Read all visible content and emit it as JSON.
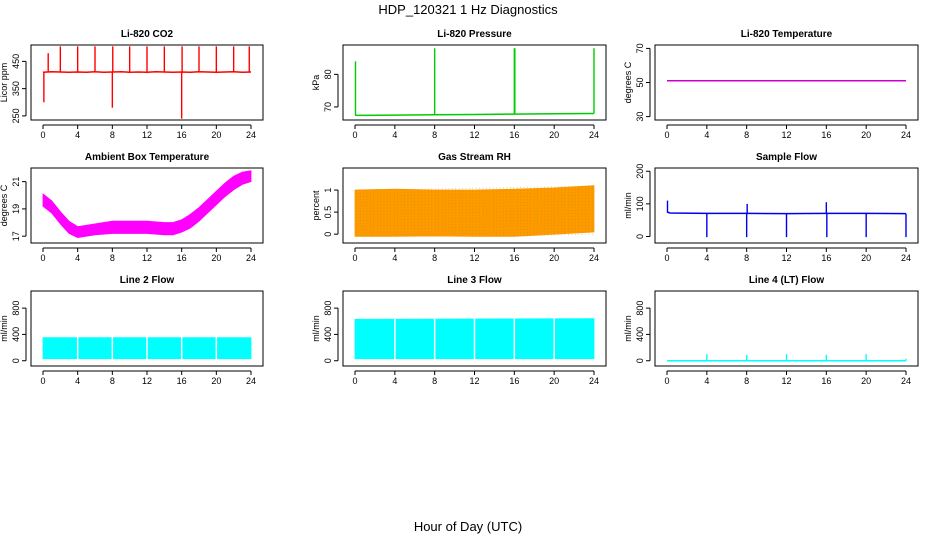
{
  "figure": {
    "title": "HDP_120321  1 Hz Diagnostics",
    "xlabel": "Hour of Day (UTC)"
  },
  "chart_data": [
    {
      "id": "co2",
      "type": "line",
      "title": "Li-820 CO2",
      "ylabel": "Licor ppm",
      "color": "#ff0000",
      "xlim": [
        0,
        24
      ],
      "xticks": [
        0,
        4,
        8,
        12,
        16,
        20,
        24
      ],
      "ylim": [
        235,
        510
      ],
      "yticks": [
        250,
        350,
        450
      ],
      "series": [
        {
          "name": "CO2",
          "x": [
            0,
            1,
            2,
            3,
            4,
            5,
            6,
            7,
            8,
            9,
            10,
            11,
            12,
            13,
            14,
            15,
            16,
            17,
            18,
            19,
            20,
            21,
            22,
            23,
            24
          ],
          "y": [
            410,
            412,
            411,
            410,
            411,
            410,
            412,
            410,
            411,
            412,
            410,
            411,
            410,
            412,
            411,
            410,
            411,
            410,
            412,
            411,
            410,
            411,
            412,
            410,
            411
          ]
        }
      ],
      "spikes": [
        {
          "x": 0.1,
          "y": 300
        },
        {
          "x": 0.6,
          "y": 480
        },
        {
          "x": 2.0,
          "y": 505
        },
        {
          "x": 4.0,
          "y": 505
        },
        {
          "x": 6.0,
          "y": 505
        },
        {
          "x": 8.0,
          "y": 280
        },
        {
          "x": 8.05,
          "y": 505
        },
        {
          "x": 10.0,
          "y": 505
        },
        {
          "x": 12.0,
          "y": 505
        },
        {
          "x": 14.0,
          "y": 505
        },
        {
          "x": 16.0,
          "y": 240
        },
        {
          "x": 16.05,
          "y": 505
        },
        {
          "x": 18.0,
          "y": 505
        },
        {
          "x": 20.0,
          "y": 505
        },
        {
          "x": 22.0,
          "y": 505
        },
        {
          "x": 23.8,
          "y": 505
        }
      ]
    },
    {
      "id": "pressure",
      "type": "line",
      "title": "Li-820 Pressure",
      "ylabel": "kPa",
      "color": "#00cc00",
      "xlim": [
        0,
        24
      ],
      "xticks": [
        0,
        4,
        8,
        12,
        16,
        20,
        24
      ],
      "ylim": [
        66,
        89
      ],
      "yticks": [
        70,
        80
      ],
      "series": [
        {
          "name": "Pressure",
          "x": [
            0,
            0.2,
            4,
            8,
            12,
            16,
            20,
            24
          ],
          "y": [
            67.5,
            67.4,
            67.5,
            67.6,
            67.7,
            67.8,
            67.9,
            68.0
          ]
        }
      ],
      "spikes": [
        {
          "x": 0.05,
          "y": 84
        },
        {
          "x": 8.0,
          "y": 88
        },
        {
          "x": 16.0,
          "y": 88
        },
        {
          "x": 16.05,
          "y": 88
        },
        {
          "x": 24.0,
          "y": 88
        }
      ]
    },
    {
      "id": "temperature",
      "type": "line",
      "title": "Li-820 Temperature",
      "ylabel": "degrees C",
      "color": "#cc00cc",
      "xlim": [
        0,
        24
      ],
      "xticks": [
        0,
        4,
        8,
        12,
        16,
        20,
        24
      ],
      "ylim": [
        28,
        72
      ],
      "yticks": [
        30,
        50,
        70
      ],
      "series": [
        {
          "name": "Temperature",
          "x": [
            0,
            24
          ],
          "y": [
            51,
            51
          ]
        }
      ]
    },
    {
      "id": "ambient",
      "type": "band",
      "title": "Ambient Box Temperature",
      "ylabel": "degrees C",
      "color": "#ff00ff",
      "xlim": [
        0,
        24
      ],
      "xticks": [
        0,
        4,
        8,
        12,
        16,
        20,
        24
      ],
      "ylim": [
        16.5,
        22
      ],
      "yticks": [
        17,
        19,
        21
      ],
      "series": [
        {
          "name": "Ambient",
          "x": [
            0,
            1,
            2,
            3,
            4,
            5,
            6,
            8,
            10,
            12,
            14,
            15,
            16,
            17,
            18,
            19,
            20,
            21,
            22,
            23,
            24
          ],
          "lower": [
            19.2,
            18.7,
            17.9,
            17.2,
            16.9,
            17.0,
            17.1,
            17.2,
            17.2,
            17.2,
            17.1,
            17.1,
            17.3,
            17.6,
            18.1,
            18.7,
            19.3,
            19.9,
            20.4,
            20.8,
            21.0
          ],
          "upper": [
            20.1,
            19.6,
            18.8,
            18.1,
            17.7,
            17.8,
            17.9,
            18.1,
            18.1,
            18.1,
            18.0,
            18.0,
            18.2,
            18.6,
            19.1,
            19.7,
            20.3,
            20.9,
            21.4,
            21.7,
            21.8
          ]
        }
      ]
    },
    {
      "id": "rh",
      "type": "band",
      "title": "Gas Stream RH",
      "ylabel": "percent",
      "color": "#ff9900",
      "color2": "#999900",
      "xlim": [
        0,
        24
      ],
      "xticks": [
        0,
        4,
        8,
        12,
        16,
        20,
        24
      ],
      "ylim": [
        -0.2,
        1.5
      ],
      "yticks": [
        0.0,
        0.5,
        1.0
      ],
      "series": [
        {
          "name": "RH",
          "x": [
            0,
            4,
            8,
            12,
            16,
            20,
            24
          ],
          "lower": [
            -0.05,
            -0.05,
            -0.04,
            -0.05,
            -0.05,
            0.0,
            0.05
          ],
          "upper": [
            1.0,
            1.02,
            1.0,
            1.0,
            1.02,
            1.05,
            1.1
          ]
        }
      ]
    },
    {
      "id": "sample_flow",
      "type": "line",
      "title": "Sample Flow",
      "ylabel": "ml/min",
      "color": "#0000ee",
      "xlim": [
        0,
        24
      ],
      "xticks": [
        0,
        4,
        8,
        12,
        16,
        20,
        24
      ],
      "ylim": [
        -20,
        210
      ],
      "yticks": [
        0,
        100,
        200
      ],
      "series": [
        {
          "name": "Sample",
          "x": [
            0,
            0.3,
            4,
            8,
            12,
            16,
            20,
            24
          ],
          "y": [
            75,
            72,
            71,
            71,
            70,
            71,
            71,
            70
          ]
        }
      ],
      "spikes": [
        {
          "x": 0.05,
          "y": 110
        },
        {
          "x": 4.0,
          "y": -2
        },
        {
          "x": 8.0,
          "y": -2
        },
        {
          "x": 8.05,
          "y": 100
        },
        {
          "x": 12.0,
          "y": -2
        },
        {
          "x": 16.0,
          "y": 105
        },
        {
          "x": 16.05,
          "y": -2
        },
        {
          "x": 20.0,
          "y": -2
        },
        {
          "x": 24.0,
          "y": -2
        }
      ]
    },
    {
      "id": "line2",
      "type": "band",
      "title": "Line 2 Flow",
      "ylabel": "ml/min",
      "color": "#00ffff",
      "xlim": [
        0,
        24
      ],
      "xticks": [
        0,
        4,
        8,
        12,
        16,
        20,
        24
      ],
      "ylim": [
        -80,
        1060
      ],
      "yticks": [
        0,
        400,
        800
      ],
      "series": [
        {
          "name": "Line 2",
          "x": [
            0,
            24
          ],
          "lower": [
            30,
            30
          ],
          "upper": [
            350,
            350
          ]
        }
      ],
      "gaps": [
        4,
        8,
        12,
        16,
        20
      ]
    },
    {
      "id": "line3",
      "type": "band",
      "title": "Line 3 Flow",
      "ylabel": "ml/min",
      "color": "#00ffff",
      "xlim": [
        0,
        24
      ],
      "xticks": [
        0,
        4,
        8,
        12,
        16,
        20,
        24
      ],
      "ylim": [
        -80,
        1060
      ],
      "yticks": [
        0,
        400,
        800
      ],
      "series": [
        {
          "name": "Line 3",
          "x": [
            0,
            24
          ],
          "lower": [
            30,
            30
          ],
          "upper": [
            630,
            640
          ]
        }
      ],
      "gaps": [
        4,
        8,
        12,
        16,
        20
      ]
    },
    {
      "id": "line4",
      "type": "line",
      "title": "Line 4 (LT) Flow",
      "ylabel": "ml/min",
      "color": "#00ffff",
      "xlim": [
        0,
        24
      ],
      "xticks": [
        0,
        4,
        8,
        12,
        16,
        20,
        24
      ],
      "ylim": [
        -80,
        1060
      ],
      "yticks": [
        0,
        400,
        800
      ],
      "series": [
        {
          "name": "Line 4",
          "x": [
            0,
            24
          ],
          "y": [
            0,
            0
          ]
        }
      ],
      "spikes": [
        {
          "x": 4.0,
          "y": 100
        },
        {
          "x": 8.0,
          "y": 90
        },
        {
          "x": 12.0,
          "y": 100
        },
        {
          "x": 16.0,
          "y": 90
        },
        {
          "x": 20.0,
          "y": 100
        },
        {
          "x": 24.0,
          "y": 30
        }
      ]
    }
  ]
}
